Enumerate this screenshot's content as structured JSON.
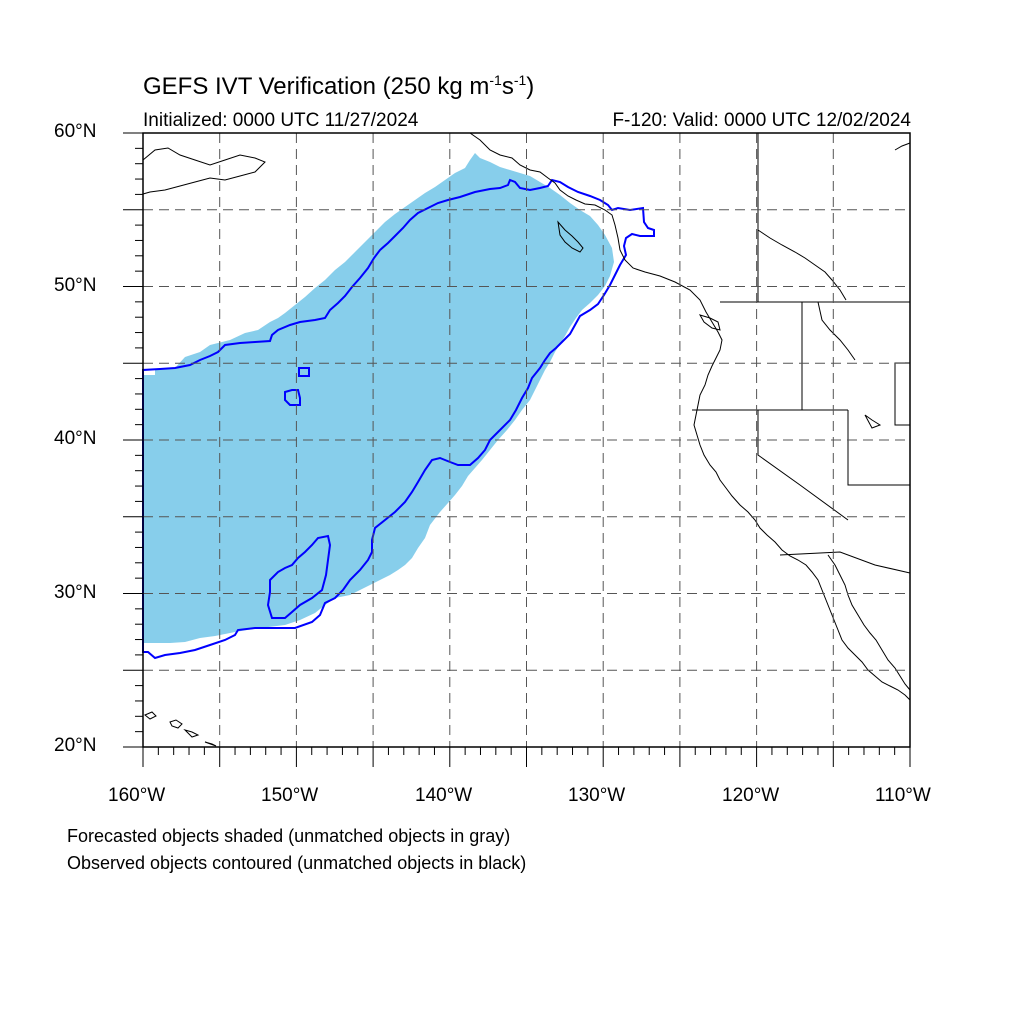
{
  "title": {
    "main": "GEFS IVT Verification (250 kg m",
    "sup1": "-1",
    "mid": "s",
    "sup2": "-1",
    "close": ")"
  },
  "subtitle": {
    "initialized": "Initialized: 0000 UTC 11/27/2024",
    "valid": "F-120: Valid: 0000 UTC 12/02/2024"
  },
  "axes": {
    "lon_range": [
      -160,
      -110
    ],
    "lat_range": [
      20,
      60
    ],
    "lat_labels": [
      "60°N",
      "50°N",
      "40°N",
      "30°N",
      "20°N"
    ],
    "lon_labels": [
      "160°W",
      "150°W",
      "140°W",
      "130°W",
      "120°W",
      "110°W"
    ],
    "grid": "dashed every 5 degrees"
  },
  "legend_notes": {
    "line1": "Forecasted objects shaded (unmatched objects in gray)",
    "line2": "Observed objects contoured (unmatched objects in black)"
  },
  "colors": {
    "forecast_fill": "#87ceeb",
    "observed_contour": "#0000ff",
    "coastline": "#000000",
    "grid": "#555555"
  }
}
